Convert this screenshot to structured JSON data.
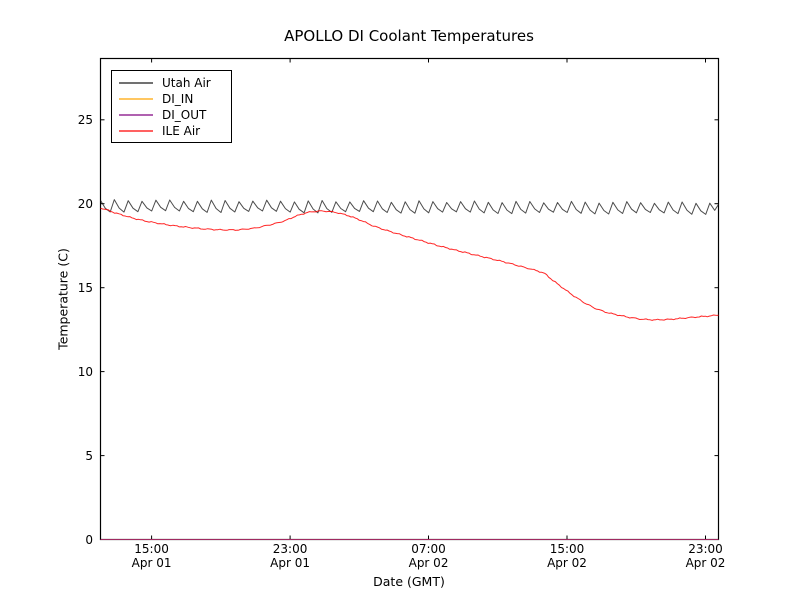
{
  "figure": {
    "background": "#ffffff",
    "frame_color": "#000000"
  },
  "chart_data": {
    "type": "line",
    "title": "APOLLO DI Coolant Temperatures",
    "xlabel": "Date (GMT)",
    "ylabel": "Temperature (C)",
    "x_unit": "hours since Apr 01 00:00 GMT",
    "xlim": [
      12.05,
      47.75
    ],
    "ylim": [
      0,
      28.65
    ],
    "grid": false,
    "legend_position": "upper-left",
    "x_ticks": [
      {
        "t": 15,
        "time": "15:00",
        "date": "Apr 01"
      },
      {
        "t": 23,
        "time": "23:00",
        "date": "Apr 01"
      },
      {
        "t": 31,
        "time": "07:00",
        "date": "Apr 02"
      },
      {
        "t": 39,
        "time": "15:00",
        "date": "Apr 02"
      },
      {
        "t": 47,
        "time": "23:00",
        "date": "Apr 02"
      }
    ],
    "y_ticks": [
      0,
      5,
      10,
      15,
      20,
      25
    ],
    "series": [
      {
        "name": "Utah Air",
        "color": "#1a1a1a",
        "opacity": 0.78,
        "style": "sawtooth",
        "sawtooth": {
          "min": 19.55,
          "max": 20.2,
          "period_h": 0.8,
          "rise_fraction": 0.3,
          "drift_per_h": -0.004
        }
      },
      {
        "name": "DI_IN",
        "color": "#ffa500",
        "opacity": 1,
        "style": "constant",
        "value": 0
      },
      {
        "name": "DI_OUT",
        "color": "#800080",
        "opacity": 0.75,
        "style": "constant",
        "value": 0
      },
      {
        "name": "ILE Air",
        "color": "#ff0000",
        "opacity": 0.85,
        "style": "points",
        "jitter": 0.04,
        "points": [
          [
            12.05,
            19.75
          ],
          [
            12.5,
            19.6
          ],
          [
            13,
            19.42
          ],
          [
            13.5,
            19.27
          ],
          [
            14,
            19.12
          ],
          [
            14.5,
            19.0
          ],
          [
            15,
            18.9
          ],
          [
            16,
            18.73
          ],
          [
            17,
            18.6
          ],
          [
            18,
            18.5
          ],
          [
            19,
            18.44
          ],
          [
            20,
            18.44
          ],
          [
            21,
            18.55
          ],
          [
            22,
            18.78
          ],
          [
            22.7,
            18.98
          ],
          [
            23.3,
            19.25
          ],
          [
            24,
            19.48
          ],
          [
            24.6,
            19.56
          ],
          [
            25.2,
            19.55
          ],
          [
            25.8,
            19.45
          ],
          [
            26.4,
            19.28
          ],
          [
            27,
            19.05
          ],
          [
            27.8,
            18.68
          ],
          [
            28.6,
            18.4
          ],
          [
            29.5,
            18.12
          ],
          [
            30.5,
            17.82
          ],
          [
            31.5,
            17.52
          ],
          [
            32.5,
            17.25
          ],
          [
            33.5,
            17.0
          ],
          [
            34.5,
            16.75
          ],
          [
            35.5,
            16.5
          ],
          [
            36.5,
            16.22
          ],
          [
            37.3,
            16.0
          ],
          [
            37.7,
            15.85
          ],
          [
            38.2,
            15.42
          ],
          [
            38.8,
            14.95
          ],
          [
            39.4,
            14.5
          ],
          [
            40,
            14.1
          ],
          [
            40.6,
            13.78
          ],
          [
            41.2,
            13.55
          ],
          [
            41.8,
            13.4
          ],
          [
            42.5,
            13.25
          ],
          [
            43.2,
            13.13
          ],
          [
            44,
            13.08
          ],
          [
            44.8,
            13.1
          ],
          [
            45.6,
            13.17
          ],
          [
            46.4,
            13.25
          ],
          [
            47.1,
            13.3
          ],
          [
            47.75,
            13.37
          ]
        ]
      }
    ]
  }
}
